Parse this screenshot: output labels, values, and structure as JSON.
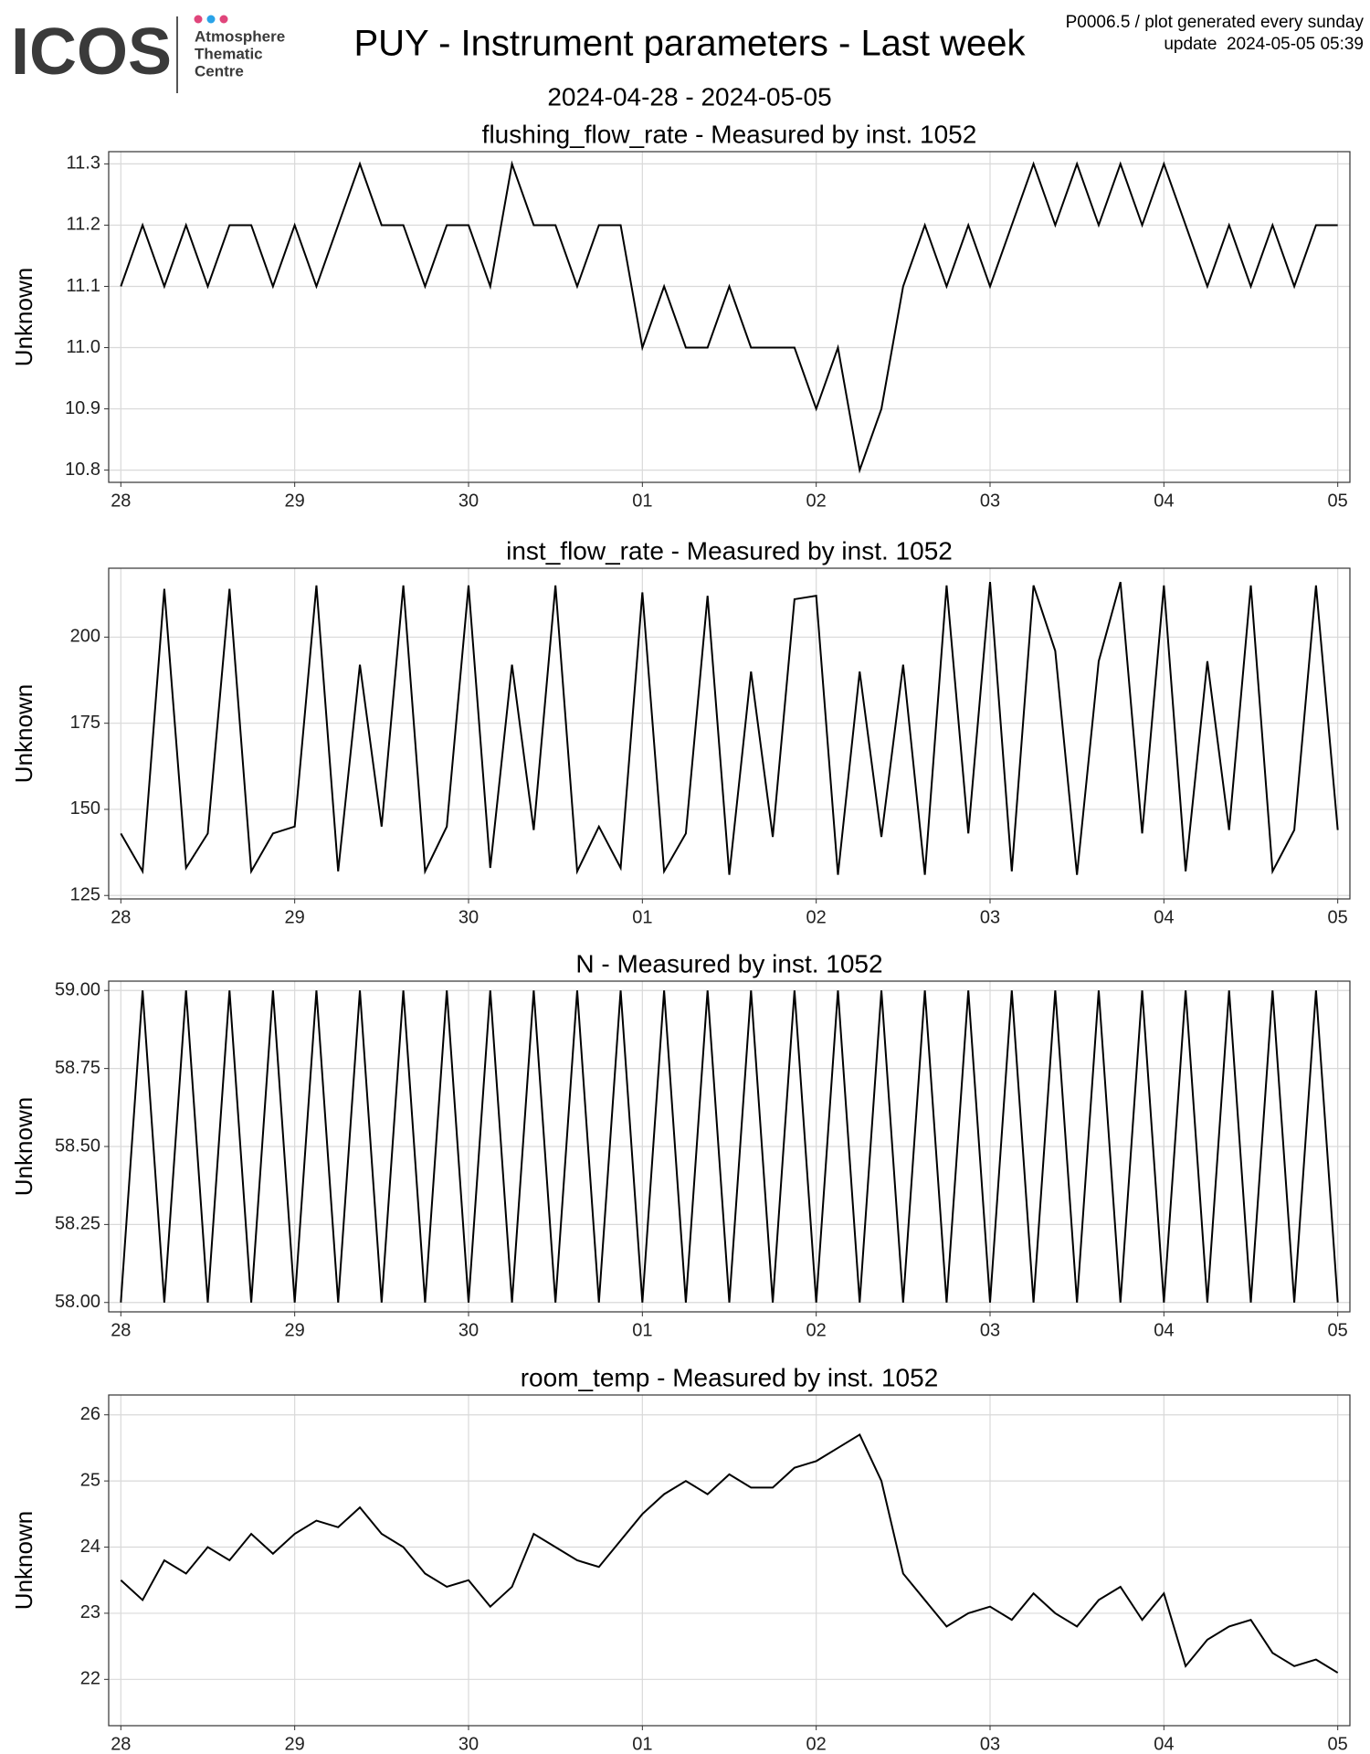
{
  "header": {
    "logo": "ICOS",
    "logo_lines": [
      "Atmosphere",
      "Thematic",
      "Centre"
    ],
    "title": "PUY - Instrument parameters - Last week",
    "subtitle": "2024-04-28 - 2024-05-05",
    "notes": [
      "P0006.5 / plot generated every sunday",
      "update  2024-05-05 05:39"
    ]
  },
  "chart_data": [
    {
      "type": "line",
      "title": "flushing_flow_rate - Measured by inst. 1052",
      "ylabel": "Unknown",
      "color": "#000000",
      "grid": true,
      "xlim": [
        -0.07,
        7.07
      ],
      "xticks": [
        {
          "value": 0,
          "label": "28"
        },
        {
          "value": 1,
          "label": "29"
        },
        {
          "value": 2,
          "label": "30"
        },
        {
          "value": 3,
          "label": "01"
        },
        {
          "value": 4,
          "label": "02"
        },
        {
          "value": 5,
          "label": "03"
        },
        {
          "value": 6,
          "label": "04"
        },
        {
          "value": 7,
          "label": "05"
        }
      ],
      "ylim": [
        10.78,
        11.32
      ],
      "yticks": [
        10.8,
        10.9,
        {
          "value": 11,
          "label": "11.0"
        },
        11.1,
        11.2,
        11.3
      ],
      "x": [
        0,
        0.125,
        0.25,
        0.375,
        0.5,
        0.625,
        0.75,
        0.875,
        1,
        1.125,
        1.25,
        1.375,
        1.5,
        1.625,
        1.75,
        1.875,
        2,
        2.125,
        2.25,
        2.375,
        2.5,
        2.625,
        2.75,
        2.875,
        3,
        3.125,
        3.25,
        3.375,
        3.5,
        3.625,
        3.75,
        3.875,
        4,
        4.125,
        4.25,
        4.375,
        4.5,
        4.625,
        4.75,
        4.875,
        5,
        5.125,
        5.25,
        5.375,
        5.5,
        5.625,
        5.75,
        5.875,
        6,
        6.125,
        6.25,
        6.375,
        6.5,
        6.625,
        6.75,
        6.875,
        7
      ],
      "values": [
        11.1,
        11.2,
        11.1,
        11.2,
        11.1,
        11.2,
        11.2,
        11.1,
        11.2,
        11.1,
        11.2,
        11.3,
        11.2,
        11.2,
        11.1,
        11.2,
        11.2,
        11.1,
        11.3,
        11.2,
        11.2,
        11.1,
        11.2,
        11.2,
        11.0,
        11.1,
        11.0,
        11.0,
        11.1,
        11.0,
        11.0,
        11.0,
        10.9,
        11.0,
        10.8,
        10.9,
        11.1,
        11.2,
        11.1,
        11.2,
        11.1,
        11.2,
        11.3,
        11.2,
        11.3,
        11.2,
        11.3,
        11.2,
        11.3,
        11.2,
        11.1,
        11.2,
        11.1,
        11.2,
        11.1,
        11.2,
        11.2
      ]
    },
    {
      "type": "line",
      "title": "inst_flow_rate - Measured by inst. 1052",
      "ylabel": "Unknown",
      "color": "#000000",
      "grid": true,
      "xlim": [
        -0.07,
        7.07
      ],
      "xticks": [
        {
          "value": 0,
          "label": "28"
        },
        {
          "value": 1,
          "label": "29"
        },
        {
          "value": 2,
          "label": "30"
        },
        {
          "value": 3,
          "label": "01"
        },
        {
          "value": 4,
          "label": "02"
        },
        {
          "value": 5,
          "label": "03"
        },
        {
          "value": 6,
          "label": "04"
        },
        {
          "value": 7,
          "label": "05"
        }
      ],
      "ylim": [
        124,
        220
      ],
      "yticks": [
        125,
        150,
        175,
        200
      ],
      "x": [
        0,
        0.125,
        0.25,
        0.375,
        0.5,
        0.625,
        0.75,
        0.875,
        1,
        1.125,
        1.25,
        1.375,
        1.5,
        1.625,
        1.75,
        1.875,
        2,
        2.125,
        2.25,
        2.375,
        2.5,
        2.625,
        2.75,
        2.875,
        3,
        3.125,
        3.25,
        3.375,
        3.5,
        3.625,
        3.75,
        3.875,
        4,
        4.125,
        4.25,
        4.375,
        4.5,
        4.625,
        4.75,
        4.875,
        5,
        5.125,
        5.25,
        5.375,
        5.5,
        5.625,
        5.75,
        5.875,
        6,
        6.125,
        6.25,
        6.375,
        6.5,
        6.625,
        6.75,
        6.875,
        7
      ],
      "values": [
        143,
        132,
        214,
        133,
        143,
        214,
        132,
        143,
        145,
        215,
        132,
        192,
        145,
        215,
        132,
        145,
        215,
        133,
        192,
        144,
        215,
        132,
        145,
        133,
        213,
        132,
        143,
        212,
        131,
        190,
        142,
        211,
        212,
        131,
        190,
        142,
        192,
        131,
        215,
        143,
        216,
        132,
        215,
        196,
        131,
        193,
        216,
        143,
        215,
        132,
        193,
        144,
        215,
        132,
        144,
        215,
        144
      ]
    },
    {
      "type": "line",
      "title": "N - Measured by inst. 1052",
      "ylabel": "Unknown",
      "color": "#000000",
      "grid": true,
      "xlim": [
        -0.07,
        7.07
      ],
      "xticks": [
        {
          "value": 0,
          "label": "28"
        },
        {
          "value": 1,
          "label": "29"
        },
        {
          "value": 2,
          "label": "30"
        },
        {
          "value": 3,
          "label": "01"
        },
        {
          "value": 4,
          "label": "02"
        },
        {
          "value": 5,
          "label": "03"
        },
        {
          "value": 6,
          "label": "04"
        },
        {
          "value": 7,
          "label": "05"
        }
      ],
      "ylim": [
        57.97,
        59.03
      ],
      "yticks": [
        {
          "value": 58,
          "label": "58.00"
        },
        58.25,
        {
          "value": 58.5,
          "label": "58.50"
        },
        58.75,
        {
          "value": 59,
          "label": "59.00"
        }
      ],
      "x": [
        0,
        0.125,
        0.25,
        0.375,
        0.5,
        0.625,
        0.75,
        0.875,
        1,
        1.125,
        1.25,
        1.375,
        1.5,
        1.625,
        1.75,
        1.875,
        2,
        2.125,
        2.25,
        2.375,
        2.5,
        2.625,
        2.75,
        2.875,
        3,
        3.125,
        3.25,
        3.375,
        3.5,
        3.625,
        3.75,
        3.875,
        4,
        4.125,
        4.25,
        4.375,
        4.5,
        4.625,
        4.75,
        4.875,
        5,
        5.125,
        5.25,
        5.375,
        5.5,
        5.625,
        5.75,
        5.875,
        6,
        6.125,
        6.25,
        6.375,
        6.5,
        6.625,
        6.75,
        6.875,
        7
      ],
      "values": [
        58,
        59,
        58,
        59,
        58,
        59,
        58,
        59,
        58,
        59,
        58,
        59,
        58,
        59,
        58,
        59,
        58,
        59,
        58,
        59,
        58,
        59,
        58,
        59,
        58,
        59,
        58,
        59,
        58,
        59,
        58,
        59,
        58,
        59,
        58,
        59,
        58,
        59,
        58,
        59,
        58,
        59,
        58,
        59,
        58,
        59,
        58,
        59,
        58,
        59,
        58,
        59,
        58,
        59,
        58,
        59,
        58
      ]
    },
    {
      "type": "line",
      "title": "room_temp - Measured by inst. 1052",
      "ylabel": "Unknown",
      "color": "#000000",
      "grid": true,
      "xlim": [
        -0.07,
        7.07
      ],
      "xticks": [
        {
          "value": 0,
          "label": "28"
        },
        {
          "value": 1,
          "label": "29"
        },
        {
          "value": 2,
          "label": "30"
        },
        {
          "value": 3,
          "label": "01"
        },
        {
          "value": 4,
          "label": "02"
        },
        {
          "value": 5,
          "label": "03"
        },
        {
          "value": 6,
          "label": "04"
        },
        {
          "value": 7,
          "label": "05"
        }
      ],
      "ylim": [
        21.3,
        26.3
      ],
      "yticks": [
        22,
        23,
        24,
        25,
        26
      ],
      "x": [
        0,
        0.125,
        0.25,
        0.375,
        0.5,
        0.625,
        0.75,
        0.875,
        1,
        1.125,
        1.25,
        1.375,
        1.5,
        1.625,
        1.75,
        1.875,
        2,
        2.125,
        2.25,
        2.375,
        2.5,
        2.625,
        2.75,
        2.875,
        3,
        3.125,
        3.25,
        3.375,
        3.5,
        3.625,
        3.75,
        3.875,
        4,
        4.125,
        4.25,
        4.375,
        4.5,
        4.625,
        4.75,
        4.875,
        5,
        5.125,
        5.25,
        5.375,
        5.5,
        5.625,
        5.75,
        5.875,
        6,
        6.125,
        6.25,
        6.375,
        6.5,
        6.625,
        6.75,
        6.875,
        7
      ],
      "values": [
        23.5,
        23.2,
        23.8,
        23.6,
        24.0,
        23.8,
        24.2,
        23.9,
        24.2,
        24.4,
        24.3,
        24.6,
        24.2,
        24.0,
        23.6,
        23.4,
        23.5,
        23.1,
        23.4,
        24.2,
        24.0,
        23.8,
        23.7,
        24.1,
        24.5,
        24.8,
        25.0,
        24.8,
        25.1,
        24.9,
        24.9,
        25.2,
        25.3,
        25.5,
        25.7,
        25.0,
        23.6,
        23.2,
        22.8,
        23.0,
        23.1,
        22.9,
        23.3,
        23.0,
        22.8,
        23.2,
        23.4,
        22.9,
        23.3,
        22.2,
        22.6,
        22.8,
        22.9,
        22.4,
        22.2,
        22.3,
        22.1
      ]
    }
  ]
}
